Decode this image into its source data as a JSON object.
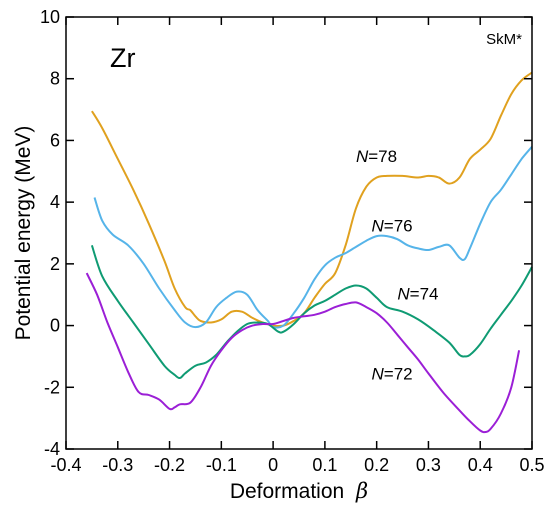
{
  "chart_data": {
    "type": "line",
    "title": "",
    "xlabel": "Deformation",
    "xlabel_symbol": "β",
    "ylabel": "Potential energy (MeV)",
    "xlim": [
      -0.4,
      0.5
    ],
    "ylim": [
      -4,
      10
    ],
    "x_ticks": [
      -0.4,
      -0.3,
      -0.2,
      -0.1,
      0,
      0.1,
      0.2,
      0.3,
      0.4,
      0.5
    ],
    "x_tick_labels": [
      "-0.4",
      "-0.3",
      "-0.2",
      "-0.1",
      "0",
      "0.1",
      "0.2",
      "0.3",
      "0.4",
      "0.5"
    ],
    "y_ticks": [
      -4,
      -2,
      0,
      2,
      4,
      6,
      8,
      10
    ],
    "y_tick_labels": [
      "-4",
      "-2",
      "0",
      "2",
      "4",
      "6",
      "8",
      "10"
    ],
    "grid": false,
    "annotations": {
      "nucleus": "Zr",
      "interaction": "SkM*"
    },
    "series": [
      {
        "name": "N=78",
        "label_prefix": "N",
        "label_value": "=78",
        "color": "#e0a11f",
        "x": [
          -0.35,
          -0.33,
          -0.3,
          -0.27,
          -0.24,
          -0.21,
          -0.19,
          -0.17,
          -0.16,
          -0.15,
          -0.14,
          -0.12,
          -0.1,
          -0.08,
          -0.06,
          -0.04,
          -0.02,
          0,
          0.02,
          0.04,
          0.06,
          0.08,
          0.1,
          0.12,
          0.14,
          0.16,
          0.18,
          0.2,
          0.22,
          0.25,
          0.28,
          0.3,
          0.32,
          0.34,
          0.36,
          0.38,
          0.4,
          0.42,
          0.44,
          0.46,
          0.48,
          0.5
        ],
        "y": [
          6.95,
          6.4,
          5.4,
          4.4,
          3.3,
          2.1,
          1.2,
          0.6,
          0.5,
          0.3,
          0.15,
          0.1,
          0.2,
          0.45,
          0.45,
          0.25,
          0.1,
          0.0,
          0.0,
          0.15,
          0.4,
          0.9,
          1.35,
          1.7,
          2.6,
          3.8,
          4.5,
          4.8,
          4.85,
          4.85,
          4.8,
          4.85,
          4.8,
          4.6,
          4.8,
          5.4,
          5.7,
          6.05,
          6.8,
          7.5,
          7.95,
          8.2
        ]
      },
      {
        "name": "N=76",
        "label_prefix": "N",
        "label_value": "=76",
        "color": "#56b4e9",
        "x": [
          -0.345,
          -0.33,
          -0.31,
          -0.28,
          -0.25,
          -0.22,
          -0.19,
          -0.17,
          -0.15,
          -0.13,
          -0.11,
          -0.09,
          -0.07,
          -0.05,
          -0.03,
          -0.01,
          0.0,
          0.02,
          0.04,
          0.06,
          0.08,
          0.1,
          0.12,
          0.14,
          0.16,
          0.18,
          0.2,
          0.22,
          0.24,
          0.26,
          0.28,
          0.3,
          0.32,
          0.34,
          0.36,
          0.37,
          0.38,
          0.4,
          0.42,
          0.44,
          0.46,
          0.48,
          0.5
        ],
        "y": [
          4.15,
          3.4,
          2.95,
          2.6,
          2.0,
          1.2,
          0.5,
          0.1,
          -0.05,
          0.1,
          0.6,
          0.9,
          1.1,
          1.0,
          0.5,
          0.15,
          -0.05,
          0.0,
          0.4,
          0.9,
          1.5,
          1.95,
          2.2,
          2.35,
          2.55,
          2.75,
          2.9,
          2.9,
          2.8,
          2.6,
          2.5,
          2.45,
          2.55,
          2.6,
          2.2,
          2.15,
          2.5,
          3.3,
          4.0,
          4.4,
          4.9,
          5.4,
          5.8
        ]
      },
      {
        "name": "N=74",
        "label_prefix": "N",
        "label_value": "=74",
        "color": "#0f9b73",
        "x": [
          -0.35,
          -0.33,
          -0.3,
          -0.27,
          -0.24,
          -0.21,
          -0.19,
          -0.18,
          -0.17,
          -0.15,
          -0.13,
          -0.11,
          -0.09,
          -0.07,
          -0.05,
          -0.03,
          -0.01,
          0.01,
          0.02,
          0.04,
          0.06,
          0.08,
          0.1,
          0.12,
          0.14,
          0.16,
          0.18,
          0.2,
          0.22,
          0.25,
          0.28,
          0.31,
          0.34,
          0.36,
          0.37,
          0.38,
          0.4,
          0.42,
          0.44,
          0.46,
          0.48,
          0.5
        ],
        "y": [
          2.6,
          1.6,
          0.8,
          0.1,
          -0.6,
          -1.3,
          -1.6,
          -1.7,
          -1.55,
          -1.3,
          -1.2,
          -0.95,
          -0.55,
          -0.2,
          0.05,
          0.1,
          0.05,
          -0.2,
          -0.2,
          0.05,
          0.4,
          0.65,
          0.8,
          1.0,
          1.2,
          1.3,
          1.2,
          0.9,
          0.6,
          0.45,
          0.2,
          -0.15,
          -0.55,
          -0.95,
          -1.0,
          -0.95,
          -0.6,
          -0.1,
          0.35,
          0.8,
          1.3,
          1.9
        ]
      },
      {
        "name": "N=72",
        "label_prefix": "N",
        "label_value": "=72",
        "color": "#9b1fd6",
        "x": [
          -0.36,
          -0.34,
          -0.32,
          -0.3,
          -0.28,
          -0.26,
          -0.24,
          -0.22,
          -0.2,
          -0.19,
          -0.18,
          -0.16,
          -0.14,
          -0.12,
          -0.1,
          -0.08,
          -0.06,
          -0.04,
          -0.02,
          0,
          0.02,
          0.04,
          0.06,
          0.08,
          0.1,
          0.12,
          0.14,
          0.16,
          0.18,
          0.2,
          0.22,
          0.24,
          0.26,
          0.28,
          0.3,
          0.33,
          0.36,
          0.38,
          0.4,
          0.41,
          0.42,
          0.44,
          0.46,
          0.475
        ],
        "y": [
          1.7,
          1.0,
          0.1,
          -0.7,
          -1.5,
          -2.15,
          -2.25,
          -2.4,
          -2.7,
          -2.65,
          -2.55,
          -2.5,
          -2.0,
          -1.3,
          -0.8,
          -0.4,
          -0.15,
          0.0,
          0.05,
          0.05,
          0.15,
          0.25,
          0.3,
          0.35,
          0.45,
          0.6,
          0.7,
          0.75,
          0.6,
          0.4,
          0.1,
          -0.3,
          -0.7,
          -1.1,
          -1.55,
          -2.2,
          -2.75,
          -3.1,
          -3.4,
          -3.45,
          -3.35,
          -2.85,
          -2.0,
          -0.8
        ]
      }
    ]
  }
}
